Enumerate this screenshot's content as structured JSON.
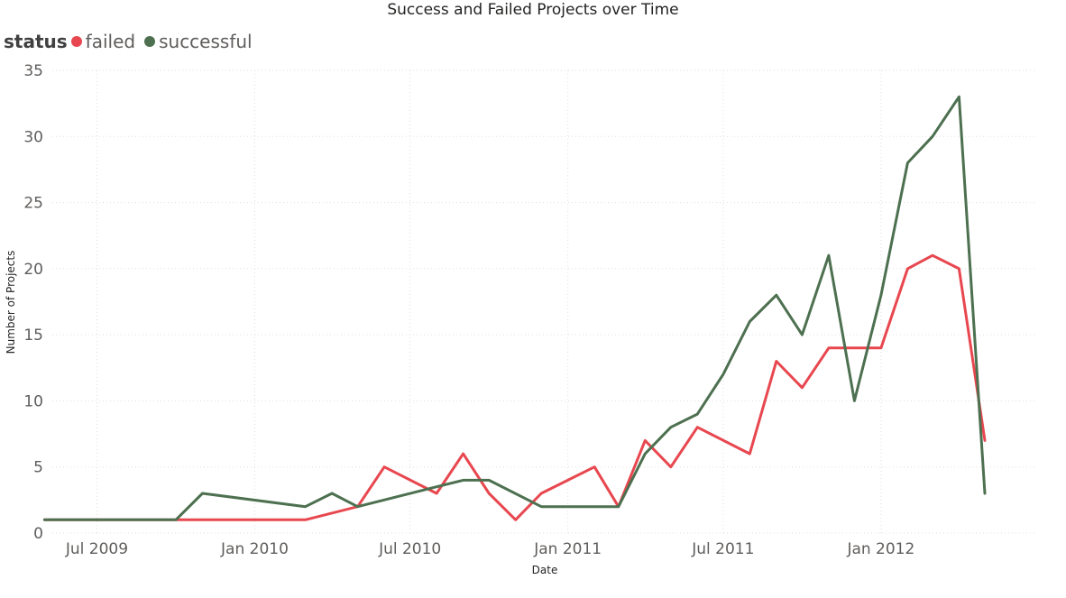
{
  "chart_data": {
    "type": "line",
    "title": "Success and Failed Projects over Time",
    "xlabel": "Date",
    "ylabel": "Number of Projects",
    "legend_title": "status",
    "legend_position": "top-left",
    "grid": true,
    "ylim": [
      0,
      35
    ],
    "xlim": [
      "2009-05-10",
      "2012-07-01"
    ],
    "y_ticks": [
      0,
      5,
      10,
      15,
      20,
      25,
      30,
      35
    ],
    "x_ticks": [
      {
        "date": "2009-07-01",
        "label": "Jul 2009"
      },
      {
        "date": "2010-01-01",
        "label": "Jan 2010"
      },
      {
        "date": "2010-07-01",
        "label": "Jul 2010"
      },
      {
        "date": "2011-01-01",
        "label": "Jan 2011"
      },
      {
        "date": "2011-07-01",
        "label": "Jul 2011"
      },
      {
        "date": "2012-01-01",
        "label": "Jan 2012"
      }
    ],
    "series": [
      {
        "name": "failed",
        "color": "#e8474f",
        "points": [
          [
            "2009-05-01",
            1
          ],
          [
            "2009-06-01",
            1
          ],
          [
            "2009-07-01",
            1
          ],
          [
            "2009-08-01",
            1
          ],
          [
            "2009-09-01",
            1
          ],
          [
            "2009-10-01",
            1
          ],
          [
            "2009-11-01",
            1
          ],
          [
            "2009-12-01",
            1
          ],
          [
            "2010-03-01",
            1
          ],
          [
            "2010-05-01",
            2
          ],
          [
            "2010-06-01",
            5
          ],
          [
            "2010-08-01",
            3
          ],
          [
            "2010-09-01",
            6
          ],
          [
            "2010-10-01",
            3
          ],
          [
            "2010-11-01",
            1
          ],
          [
            "2010-12-01",
            3
          ],
          [
            "2011-02-01",
            5
          ],
          [
            "2011-03-01",
            2
          ],
          [
            "2011-04-01",
            7
          ],
          [
            "2011-05-01",
            5
          ],
          [
            "2011-06-01",
            8
          ],
          [
            "2011-08-01",
            6
          ],
          [
            "2011-09-01",
            13
          ],
          [
            "2011-10-01",
            11
          ],
          [
            "2011-11-01",
            14
          ],
          [
            "2011-12-01",
            14
          ],
          [
            "2012-01-01",
            14
          ],
          [
            "2012-02-01",
            20
          ],
          [
            "2012-03-01",
            21
          ],
          [
            "2012-04-01",
            20
          ],
          [
            "2012-05-01",
            7
          ]
        ]
      },
      {
        "name": "successful",
        "color": "#4d7050",
        "points": [
          [
            "2009-05-01",
            1
          ],
          [
            "2009-06-01",
            1
          ],
          [
            "2009-07-01",
            1
          ],
          [
            "2009-08-01",
            1
          ],
          [
            "2009-09-01",
            1
          ],
          [
            "2009-10-01",
            1
          ],
          [
            "2009-11-01",
            3
          ],
          [
            "2010-03-01",
            2
          ],
          [
            "2010-04-01",
            3
          ],
          [
            "2010-05-01",
            2
          ],
          [
            "2010-08-01",
            3.5
          ],
          [
            "2010-09-01",
            4
          ],
          [
            "2010-10-01",
            4
          ],
          [
            "2010-12-01",
            2
          ],
          [
            "2011-01-01",
            2
          ],
          [
            "2011-02-01",
            2
          ],
          [
            "2011-03-01",
            2
          ],
          [
            "2011-04-01",
            6
          ],
          [
            "2011-05-01",
            8
          ],
          [
            "2011-06-01",
            9
          ],
          [
            "2011-07-01",
            12
          ],
          [
            "2011-08-01",
            16
          ],
          [
            "2011-09-01",
            18
          ],
          [
            "2011-10-01",
            15
          ],
          [
            "2011-11-01",
            21
          ],
          [
            "2011-12-01",
            10
          ],
          [
            "2012-01-01",
            18
          ],
          [
            "2012-02-01",
            28
          ],
          [
            "2012-03-01",
            30
          ],
          [
            "2012-04-01",
            33
          ],
          [
            "2012-05-01",
            3
          ]
        ]
      }
    ]
  }
}
